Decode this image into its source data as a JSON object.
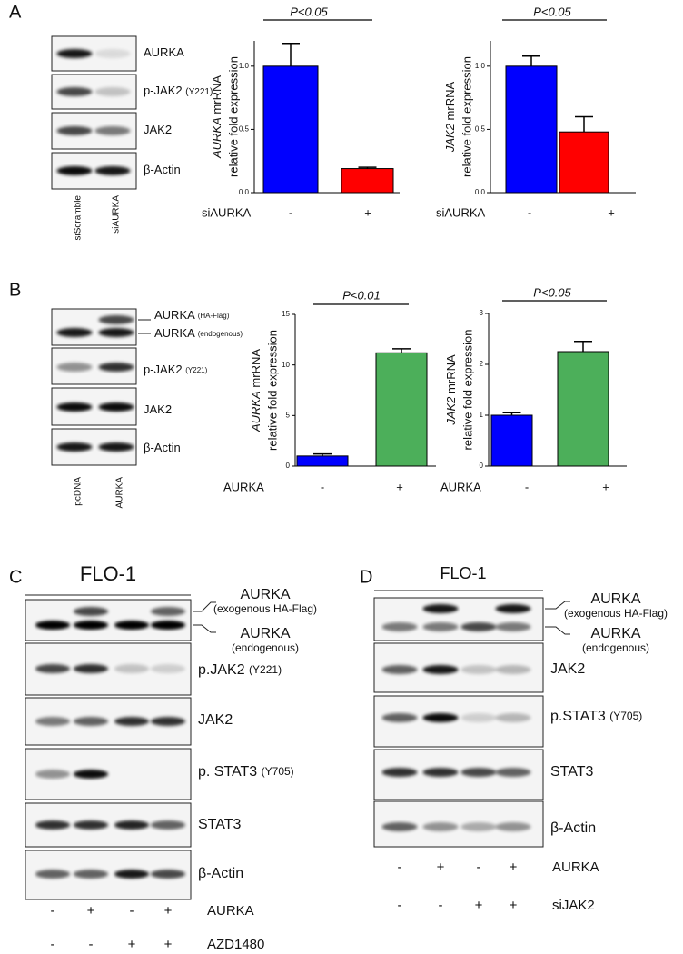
{
  "chart_data": [
    {
      "type": "bar",
      "y_label_gene": "AURKA",
      "y_label_unit": "mrRNA",
      "y_label_line2": "relative fold expression",
      "x_label": "siAURKA",
      "categories": [
        "-",
        "+"
      ],
      "values": [
        1.0,
        0.19
      ],
      "errors": [
        0.18,
        0.01
      ],
      "colors": [
        "#0000ff",
        "#ff0000"
      ],
      "ylim": [
        0,
        1.2
      ],
      "yticks": [
        {
          "value": 0,
          "label": "0.0"
        },
        {
          "value": 0.5,
          "label": "0.5"
        },
        {
          "value": 1,
          "label": "1.0"
        }
      ],
      "annotation": "P<0.05"
    },
    {
      "type": "bar",
      "y_label_gene": "JAK2",
      "y_label_unit": "mrRNA",
      "y_label_line2": "relative fold expression",
      "x_label": "siAURKA",
      "categories": [
        "-",
        "+"
      ],
      "values": [
        1.0,
        0.48
      ],
      "errors": [
        0.08,
        0.12
      ],
      "colors": [
        "#0000ff",
        "#ff0000"
      ],
      "ylim": [
        0,
        1.2
      ],
      "yticks": [
        {
          "value": 0,
          "label": "0.0"
        },
        {
          "value": 0.5,
          "label": "0.5"
        },
        {
          "value": 1,
          "label": "1.0"
        }
      ],
      "annotation": "P<0.05"
    },
    {
      "type": "bar",
      "y_label_gene": "AURKA",
      "y_label_unit": "mrRNA",
      "y_label_line2": "relative fold expression",
      "x_label": "AURKA",
      "categories": [
        "-",
        "+"
      ],
      "values": [
        1.0,
        11.2
      ],
      "errors": [
        0.2,
        0.4
      ],
      "colors": [
        "#0000ff",
        "#4caf5a"
      ],
      "ylim": [
        0,
        15
      ],
      "yticks": [
        0,
        5,
        10,
        15
      ],
      "annotation": "P<0.01"
    },
    {
      "type": "bar",
      "y_label_gene": "JAK2",
      "y_label_unit": "mrRNA",
      "y_label_line2": "relative fold expression",
      "x_label": "AURKA",
      "categories": [
        "-",
        "+"
      ],
      "values": [
        1.0,
        2.25
      ],
      "errors": [
        0.05,
        0.2
      ],
      "colors": [
        "#0000ff",
        "#4caf5a"
      ],
      "ylim": [
        0,
        3
      ],
      "yticks": [
        0,
        1,
        2,
        3
      ],
      "annotation": "P<0.05"
    }
  ],
  "panel_labels": [
    "A",
    "B",
    "C",
    "D"
  ],
  "blots": [
    {
      "rows": [
        {
          "name": "AURKA"
        },
        {
          "name": "p-JAK2",
          "note": "(Y221)"
        },
        {
          "name": "JAK2"
        },
        {
          "name": "β-Actin"
        }
      ],
      "lanes": [
        "siScramble",
        "siAURKA"
      ]
    },
    {
      "rows": [
        {
          "name": "AURKA",
          "note": "(HA-Flag)"
        },
        {
          "name": "AURKA",
          "note": "(endogenous)"
        },
        {
          "name": "p-JAK2",
          "note": "(Y221)"
        },
        {
          "name": "JAK2"
        },
        {
          "name": "β-Actin"
        }
      ],
      "lanes": [
        "pcDNA",
        "AURKA"
      ]
    },
    {
      "cell_line": "FLO-1",
      "rows": [
        {
          "name": "AURKA",
          "note": "(exogenous HA-Flag)"
        },
        {
          "name": "AURKA",
          "note": "(endogenous)"
        },
        {
          "name": "p.JAK2",
          "note": "(Y221)"
        },
        {
          "name": "JAK2"
        },
        {
          "name": "p. STAT3",
          "note": "(Y705)"
        },
        {
          "name": "STAT3"
        },
        {
          "name": "β-Actin"
        }
      ],
      "conditions": [
        {
          "name": "AURKA",
          "signs": [
            "-",
            "+",
            "-",
            "+"
          ]
        },
        {
          "name": "AZD1480",
          "signs": [
            "-",
            "-",
            "+",
            "+"
          ]
        }
      ]
    },
    {
      "cell_line": "FLO-1",
      "rows": [
        {
          "name": "AURKA",
          "note": "(exogenous HA-Flag)"
        },
        {
          "name": "AURKA",
          "note": "(endogenous)"
        },
        {
          "name": "JAK2"
        },
        {
          "name": "p.STAT3",
          "note": "(Y705)"
        },
        {
          "name": "STAT3"
        },
        {
          "name": "β-Actin"
        }
      ],
      "conditions": [
        {
          "name": "AURKA",
          "signs": [
            "-",
            "+",
            "-",
            "+"
          ]
        },
        {
          "name": "siJAK2",
          "signs": [
            "-",
            "-",
            "+",
            "+"
          ]
        }
      ]
    }
  ]
}
